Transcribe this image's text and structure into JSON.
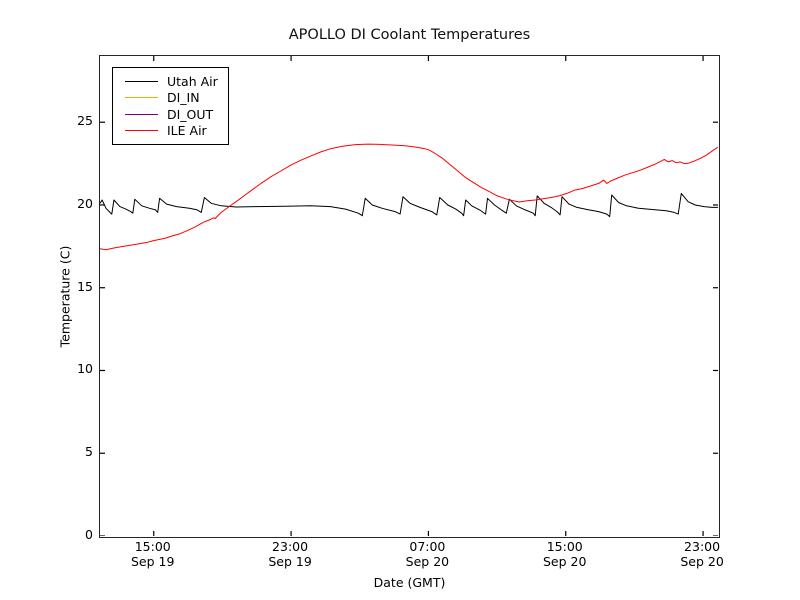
{
  "chart_data": {
    "type": "line",
    "title": "APOLLO DI Coolant Temperatures",
    "xlabel": "Date (GMT)",
    "ylabel": "Temperature (C)",
    "grid": false,
    "legend_position": "upper left",
    "x_unit": "hours since Sep 19 00:00 GMT",
    "xlim": [
      11.87,
      47.87
    ],
    "ylim": [
      0,
      29
    ],
    "y_ticks": [
      0,
      5,
      10,
      15,
      20,
      25
    ],
    "x_ticks": [
      {
        "v": 15,
        "time": "15:00",
        "date": "Sep 19"
      },
      {
        "v": 23,
        "time": "23:00",
        "date": "Sep 19"
      },
      {
        "v": 31,
        "time": "07:00",
        "date": "Sep 20"
      },
      {
        "v": 39,
        "time": "15:00",
        "date": "Sep 20"
      },
      {
        "v": 47,
        "time": "23:00",
        "date": "Sep 20"
      }
    ],
    "series": [
      {
        "name": "Utah Air",
        "color": "#000000",
        "points": [
          [
            11.87,
            20.1
          ],
          [
            11.99,
            20.3
          ],
          [
            12.22,
            19.8
          ],
          [
            12.45,
            19.55
          ],
          [
            12.56,
            19.45
          ],
          [
            12.68,
            20.3
          ],
          [
            13.03,
            19.9
          ],
          [
            13.37,
            19.75
          ],
          [
            13.66,
            19.6
          ],
          [
            13.78,
            19.5
          ],
          [
            13.9,
            20.35
          ],
          [
            14.3,
            19.95
          ],
          [
            14.76,
            19.8
          ],
          [
            15.11,
            19.7
          ],
          [
            15.23,
            19.55
          ],
          [
            15.34,
            20.4
          ],
          [
            15.75,
            20.05
          ],
          [
            16.33,
            19.9
          ],
          [
            17.08,
            19.8
          ],
          [
            17.54,
            19.7
          ],
          [
            17.77,
            19.55
          ],
          [
            17.95,
            20.45
          ],
          [
            18.35,
            20.1
          ],
          [
            18.93,
            19.95
          ],
          [
            19.8,
            19.88
          ],
          [
            20.96,
            19.9
          ],
          [
            22.69,
            19.92
          ],
          [
            24.14,
            19.95
          ],
          [
            25.3,
            19.9
          ],
          [
            26.17,
            19.75
          ],
          [
            26.92,
            19.5
          ],
          [
            27.15,
            19.35
          ],
          [
            27.32,
            20.4
          ],
          [
            27.73,
            20.0
          ],
          [
            28.31,
            19.8
          ],
          [
            29.06,
            19.6
          ],
          [
            29.35,
            19.45
          ],
          [
            29.52,
            20.5
          ],
          [
            29.93,
            20.1
          ],
          [
            30.51,
            19.85
          ],
          [
            31.2,
            19.6
          ],
          [
            31.49,
            19.4
          ],
          [
            31.66,
            20.45
          ],
          [
            32.13,
            20.0
          ],
          [
            32.59,
            19.75
          ],
          [
            32.94,
            19.5
          ],
          [
            33.05,
            19.35
          ],
          [
            33.17,
            20.3
          ],
          [
            33.52,
            19.95
          ],
          [
            33.98,
            19.7
          ],
          [
            34.33,
            19.45
          ],
          [
            34.44,
            20.4
          ],
          [
            34.85,
            20.0
          ],
          [
            35.25,
            19.7
          ],
          [
            35.54,
            19.5
          ],
          [
            35.72,
            20.35
          ],
          [
            36.12,
            19.95
          ],
          [
            36.64,
            19.7
          ],
          [
            37.11,
            19.5
          ],
          [
            37.22,
            19.35
          ],
          [
            37.34,
            20.55
          ],
          [
            37.74,
            20.1
          ],
          [
            38.15,
            19.85
          ],
          [
            38.49,
            19.6
          ],
          [
            38.67,
            19.4
          ],
          [
            38.78,
            20.5
          ],
          [
            39.19,
            20.05
          ],
          [
            39.65,
            19.85
          ],
          [
            40.35,
            19.7
          ],
          [
            40.92,
            19.6
          ],
          [
            41.39,
            19.45
          ],
          [
            41.56,
            19.3
          ],
          [
            41.68,
            20.6
          ],
          [
            42.08,
            20.15
          ],
          [
            42.54,
            19.95
          ],
          [
            43.24,
            19.8
          ],
          [
            44.11,
            19.72
          ],
          [
            44.86,
            19.65
          ],
          [
            45.32,
            19.55
          ],
          [
            45.55,
            19.45
          ],
          [
            45.73,
            20.7
          ],
          [
            46.13,
            20.2
          ],
          [
            46.54,
            20.0
          ],
          [
            47.06,
            19.9
          ],
          [
            47.52,
            19.85
          ],
          [
            47.87,
            19.85
          ]
        ]
      },
      {
        "name": "DI_IN",
        "color": "#ffa500",
        "points": []
      },
      {
        "name": "DI_OUT",
        "color": "#800080",
        "points": []
      },
      {
        "name": "ILE Air",
        "color": "#ff0000",
        "points": [
          [
            11.87,
            17.35
          ],
          [
            12.22,
            17.3
          ],
          [
            12.68,
            17.4
          ],
          [
            13.26,
            17.5
          ],
          [
            13.95,
            17.62
          ],
          [
            14.65,
            17.75
          ],
          [
            15.0,
            17.85
          ],
          [
            15.34,
            17.92
          ],
          [
            15.69,
            18.0
          ],
          [
            16.04,
            18.12
          ],
          [
            16.5,
            18.25
          ],
          [
            16.96,
            18.45
          ],
          [
            17.43,
            18.68
          ],
          [
            17.89,
            18.95
          ],
          [
            18.24,
            19.1
          ],
          [
            18.47,
            19.22
          ],
          [
            18.58,
            19.18
          ],
          [
            18.93,
            19.55
          ],
          [
            19.39,
            19.9
          ],
          [
            19.86,
            20.25
          ],
          [
            20.32,
            20.6
          ],
          [
            20.78,
            20.95
          ],
          [
            21.25,
            21.3
          ],
          [
            21.82,
            21.7
          ],
          [
            22.4,
            22.05
          ],
          [
            22.98,
            22.4
          ],
          [
            23.56,
            22.7
          ],
          [
            24.14,
            22.95
          ],
          [
            24.72,
            23.2
          ],
          [
            25.3,
            23.4
          ],
          [
            25.99,
            23.55
          ],
          [
            26.74,
            23.65
          ],
          [
            27.5,
            23.68
          ],
          [
            28.19,
            23.66
          ],
          [
            28.88,
            23.62
          ],
          [
            29.64,
            23.58
          ],
          [
            30.22,
            23.5
          ],
          [
            30.8,
            23.4
          ],
          [
            31.08,
            23.3
          ],
          [
            31.49,
            23.05
          ],
          [
            31.84,
            22.8
          ],
          [
            32.24,
            22.45
          ],
          [
            32.71,
            22.05
          ],
          [
            33.17,
            21.65
          ],
          [
            33.63,
            21.35
          ],
          [
            34.09,
            21.05
          ],
          [
            34.56,
            20.8
          ],
          [
            35.02,
            20.55
          ],
          [
            35.48,
            20.38
          ],
          [
            35.95,
            20.25
          ],
          [
            36.29,
            20.18
          ],
          [
            36.76,
            20.25
          ],
          [
            37.22,
            20.3
          ],
          [
            37.68,
            20.38
          ],
          [
            38.15,
            20.45
          ],
          [
            38.61,
            20.55
          ],
          [
            39.07,
            20.7
          ],
          [
            39.53,
            20.9
          ],
          [
            40.0,
            21.0
          ],
          [
            40.46,
            21.15
          ],
          [
            40.92,
            21.3
          ],
          [
            41.21,
            21.5
          ],
          [
            41.39,
            21.3
          ],
          [
            41.62,
            21.45
          ],
          [
            41.97,
            21.6
          ],
          [
            42.43,
            21.8
          ],
          [
            42.89,
            21.95
          ],
          [
            43.35,
            22.1
          ],
          [
            43.82,
            22.3
          ],
          [
            44.28,
            22.5
          ],
          [
            44.74,
            22.75
          ],
          [
            44.97,
            22.6
          ],
          [
            45.2,
            22.68
          ],
          [
            45.44,
            22.55
          ],
          [
            45.67,
            22.6
          ],
          [
            45.9,
            22.5
          ],
          [
            46.13,
            22.52
          ],
          [
            46.48,
            22.65
          ],
          [
            46.83,
            22.8
          ],
          [
            47.17,
            23.0
          ],
          [
            47.52,
            23.25
          ],
          [
            47.87,
            23.5
          ]
        ]
      }
    ]
  }
}
